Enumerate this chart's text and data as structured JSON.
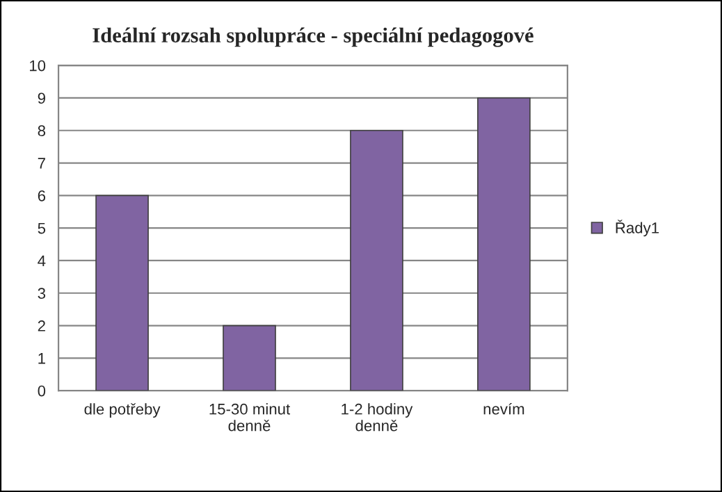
{
  "chart_data": {
    "type": "bar",
    "title": "Ideální rozsah spolupráce - speciální pedagogové",
    "categories": [
      "dle potřeby",
      "15-30 minut\ndenně",
      "1-2 hodiny\ndenně",
      "nevím"
    ],
    "series": [
      {
        "name": "Řady1",
        "color": "#8064a2",
        "values": [
          6,
          2,
          8,
          9
        ]
      }
    ],
    "ylim": [
      0,
      10
    ],
    "yticks": [
      0,
      1,
      2,
      3,
      4,
      5,
      6,
      7,
      8,
      9,
      10
    ],
    "grid": "y",
    "legend": "right"
  }
}
